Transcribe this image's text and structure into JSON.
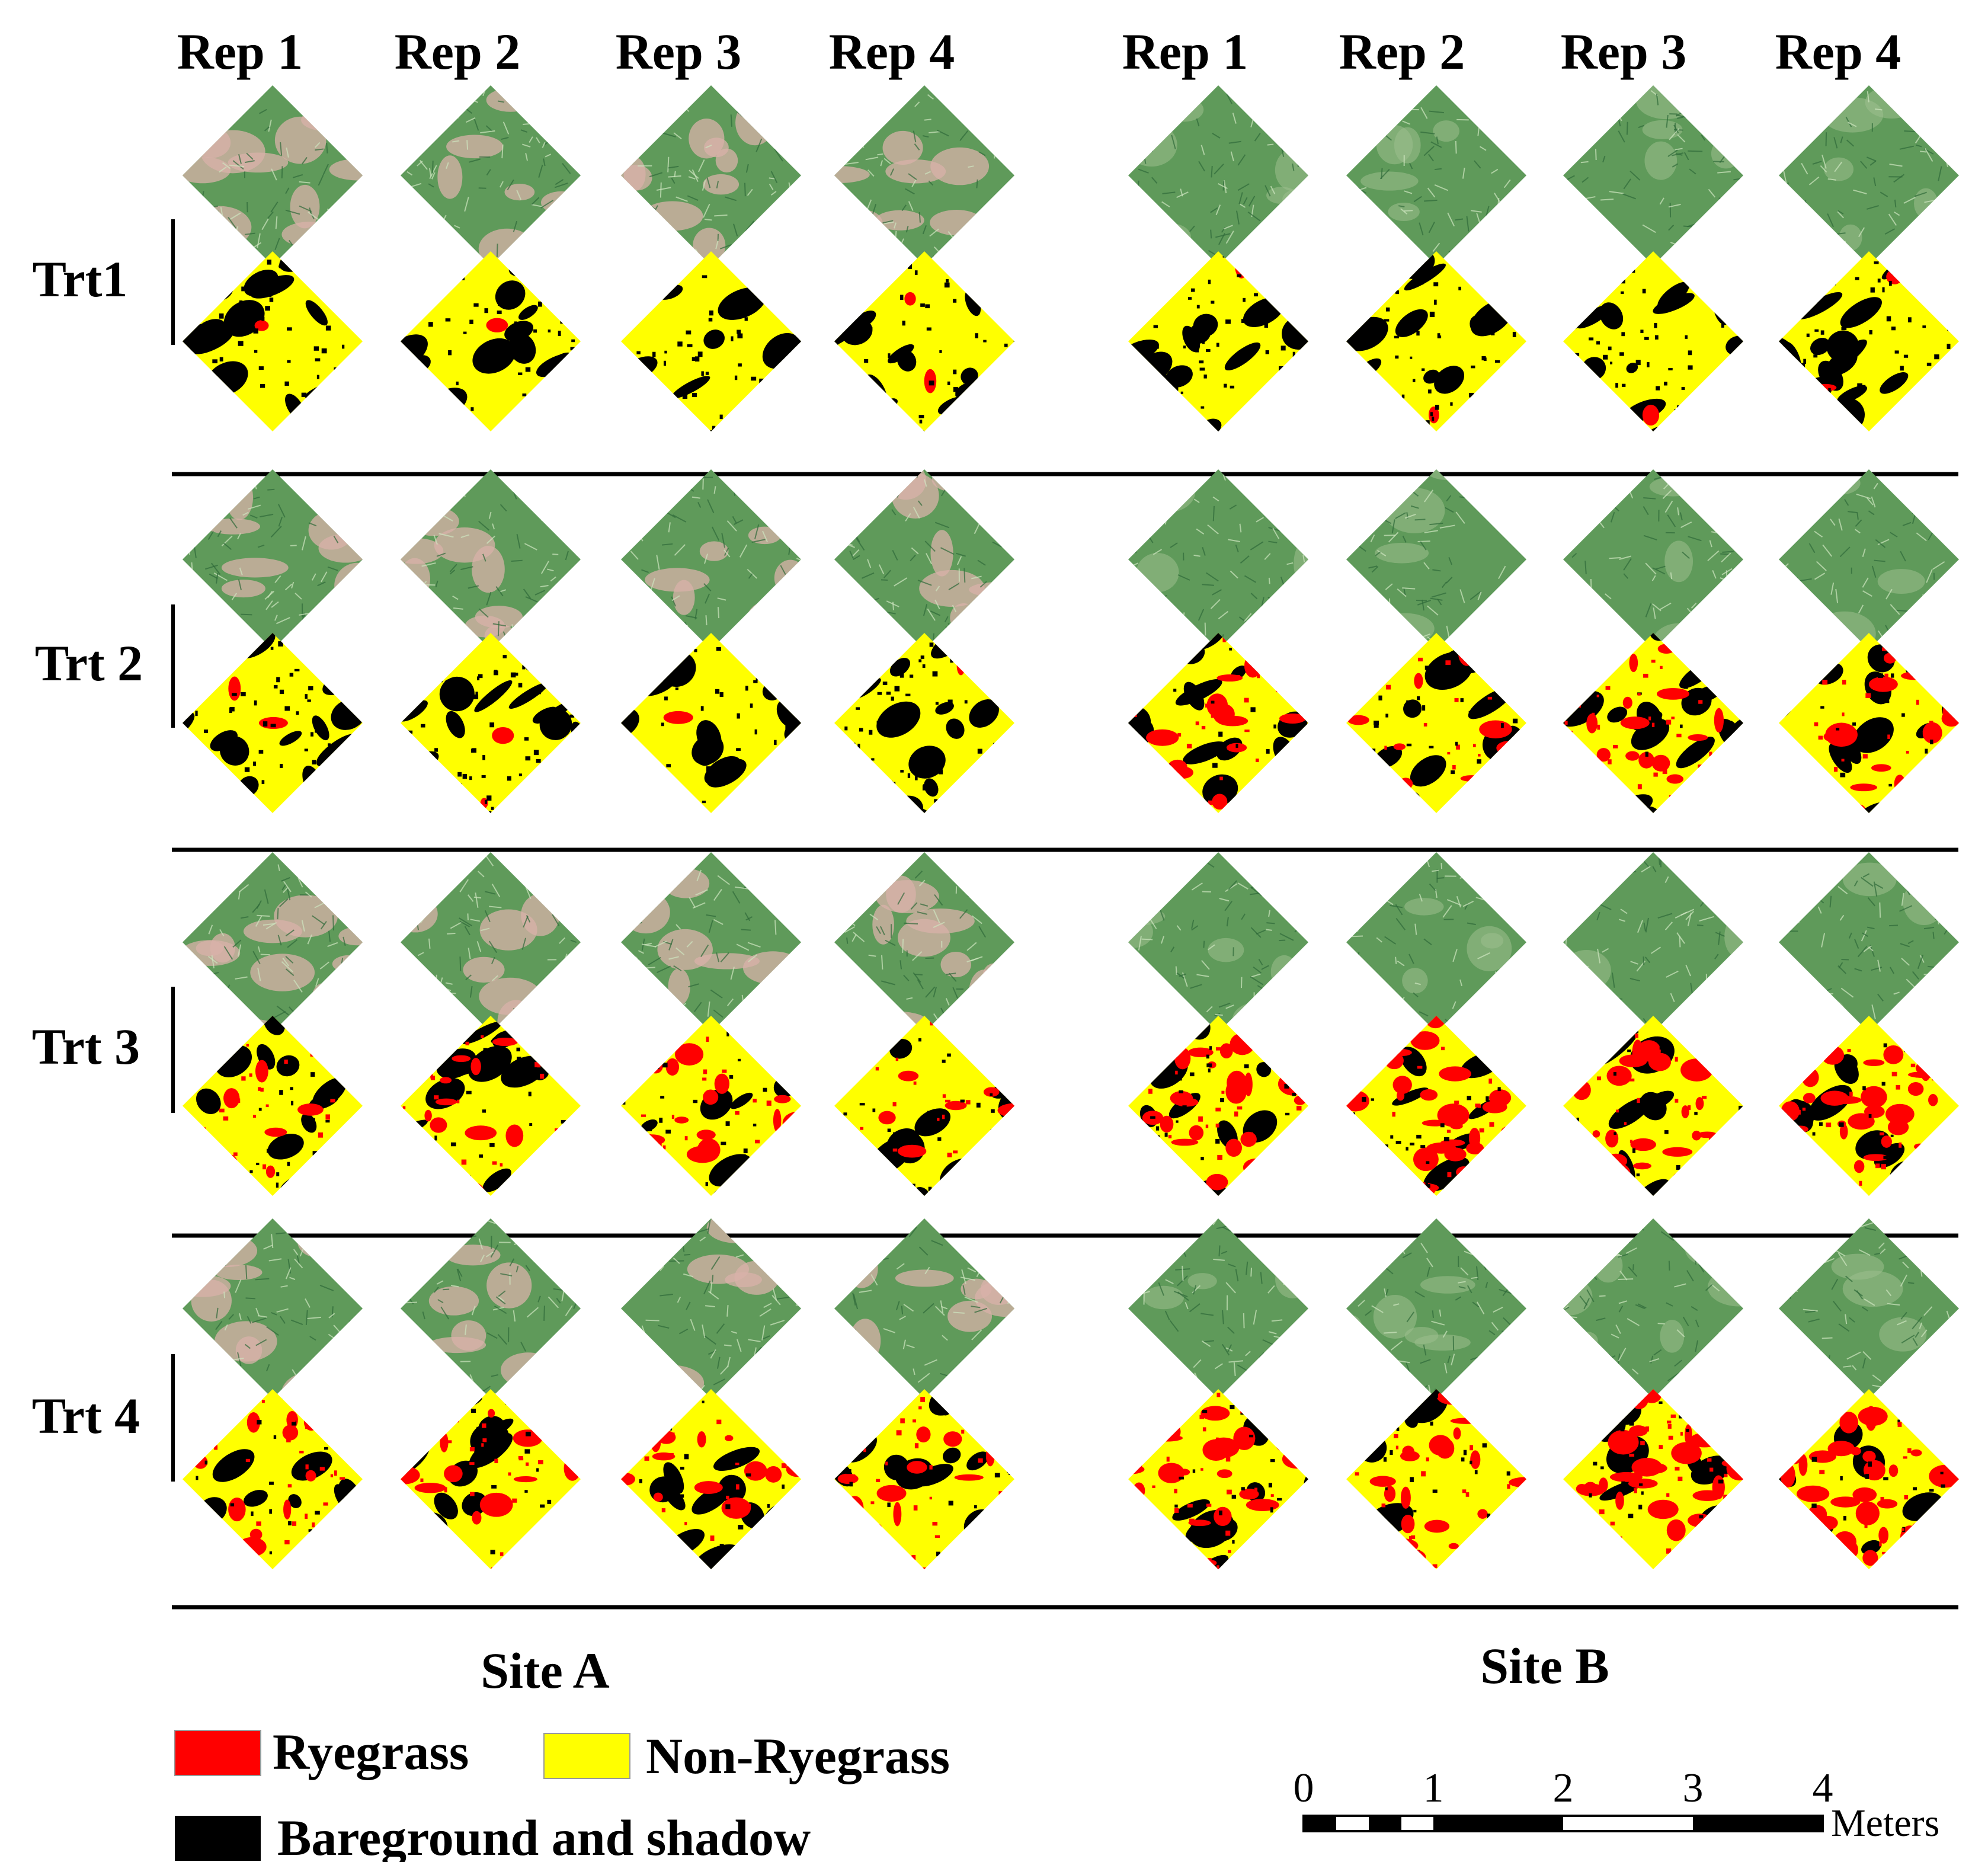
{
  "reps": [
    "Rep 1",
    "Rep 2",
    "Rep 3",
    "Rep 4"
  ],
  "treatments": [
    {
      "label": "Trt1",
      "map_mode": "nonrye"
    },
    {
      "label": "Trt 2",
      "map_mode": "mixed"
    },
    {
      "label": "Trt 3",
      "map_mode": "rye"
    },
    {
      "label": "Trt 4",
      "map_mode": "rye"
    }
  ],
  "sites": [
    {
      "label": "Site A",
      "photo_tone": "pinkish"
    },
    {
      "label": "Site B",
      "photo_tone": "green"
    }
  ],
  "legend": [
    {
      "label": "Ryegrass",
      "color": "#ff0000"
    },
    {
      "label": "Non-Ryegrass",
      "color": "#ffff00"
    },
    {
      "label": "Bareground and shadow",
      "color": "#000000"
    }
  ],
  "scale_bar": {
    "ticks": [
      "0",
      "1",
      "2",
      "3",
      "4"
    ],
    "unit": "Meters"
  },
  "colors": {
    "ryegrass": "#ff0000",
    "non_ryegrass": "#ffff00",
    "bareground": "#000000",
    "turf_green": "#5f9a5a",
    "turf_light": "#9cc08e",
    "soil_pink": "#d8b2aa"
  }
}
